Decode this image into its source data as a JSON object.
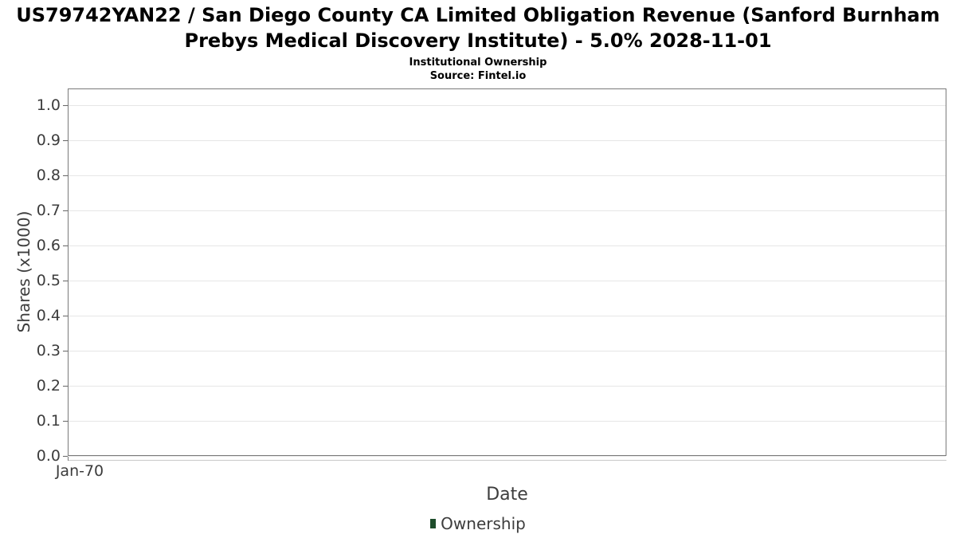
{
  "chart_data": {
    "type": "line",
    "title": "US79742YAN22 / San Diego County CA Limited Obligation Revenue (Sanford Burnham Prebys Medical Discovery Institute) - 5.0% 2028-11-01",
    "subtitle": "Institutional Ownership",
    "source": "Source: Fintel.io",
    "xlabel": "Date",
    "ylabel": "Shares (x1000)",
    "x_tick_labels": [
      "Jan-70"
    ],
    "y_ticks": [
      0.0,
      0.1,
      0.2,
      0.3,
      0.4,
      0.5,
      0.6,
      0.7,
      0.8,
      0.9,
      1.0
    ],
    "ylim": [
      0.0,
      1.05
    ],
    "grid": "horizontal-only",
    "legend_position": "bottom-center",
    "series": [
      {
        "name": "Ownership",
        "color": "#1e4d2b",
        "x": [],
        "values": []
      }
    ],
    "colors": {
      "background": "#ffffff",
      "title_text": "#000000",
      "tick_text": "#3c3c3c",
      "axis_title_text": "#3d3d3d",
      "plot_border": "#7a7a7a",
      "gridline": "#e6e6e6",
      "legend_marker": "#1e4d2b"
    }
  }
}
